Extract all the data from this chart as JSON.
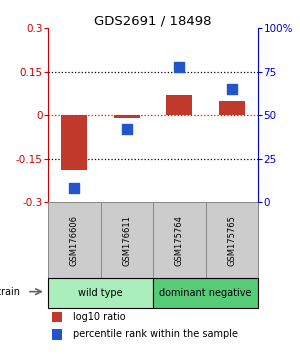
{
  "title": "GDS2691 / 18498",
  "samples": [
    "GSM176606",
    "GSM176611",
    "GSM175764",
    "GSM175765"
  ],
  "log10_ratio": [
    -0.19,
    -0.01,
    0.07,
    0.05
  ],
  "percentile_rank": [
    8,
    42,
    78,
    65
  ],
  "ylim_left": [
    -0.3,
    0.3
  ],
  "ylim_right": [
    0,
    100
  ],
  "yticks_left": [
    -0.3,
    -0.15,
    0.0,
    0.15,
    0.3
  ],
  "yticks_right": [
    0,
    25,
    50,
    75,
    100
  ],
  "ytick_labels_left": [
    "-0.3",
    "-0.15",
    "0",
    "0.15",
    "0.3"
  ],
  "ytick_labels_right": [
    "0",
    "25",
    "50",
    "75",
    "100%"
  ],
  "bar_color": "#c0392b",
  "dot_color": "#2255cc",
  "bar_width": 0.5,
  "dot_size": 45,
  "groups": [
    {
      "label": "wild type",
      "samples": [
        0,
        1
      ],
      "color": "#aaeebb"
    },
    {
      "label": "dominant negative",
      "samples": [
        2,
        3
      ],
      "color": "#55cc77"
    }
  ],
  "strain_label": "strain",
  "legend_bar_label": "log10 ratio",
  "legend_dot_label": "percentile rank within the sample",
  "left_axis_color": "#cc0000",
  "right_axis_color": "#0000cc",
  "sample_box_color": "#cccccc",
  "sample_box_edge_color": "#888888"
}
